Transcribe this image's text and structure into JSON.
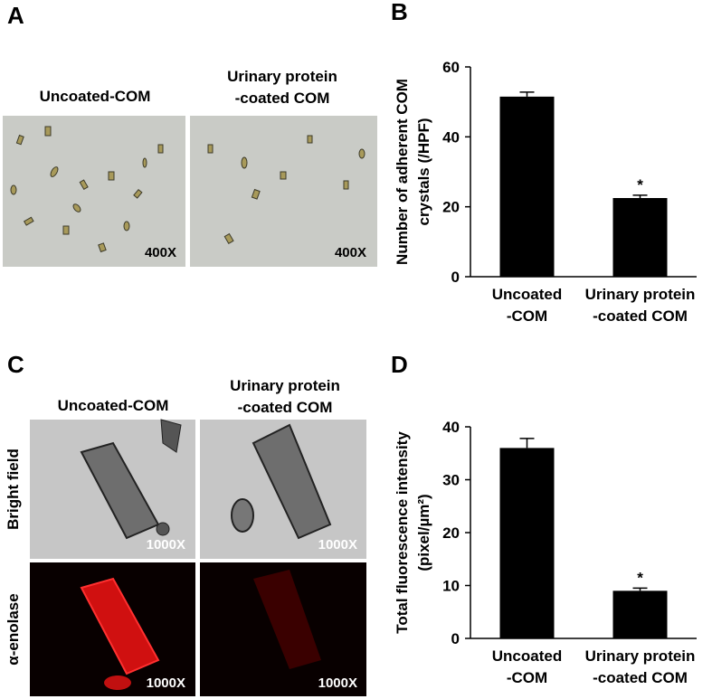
{
  "panel_letters": [
    "A",
    "B",
    "C",
    "D"
  ],
  "panel_a": {
    "column_labels": [
      "Uncoated-COM",
      "Urinary protein\n-coated COM"
    ],
    "magnifications": [
      "400X",
      "400X"
    ]
  },
  "panel_c": {
    "column_labels": [
      "Uncoated-COM",
      "Urinary protein\n-coated COM"
    ],
    "row_labels": [
      "Bright field",
      "α-enolase"
    ],
    "magnifications": [
      "1000X",
      "1000X",
      "1000X",
      "1000X"
    ]
  },
  "chart_data": [
    {
      "type": "bar",
      "y_label": "Number of adherent COM\ncrystals (/HPF)",
      "categories": [
        "Uncoated\n-COM",
        "Urinary protein\n-coated COM"
      ],
      "values": [
        51.5,
        22.5
      ],
      "errors": [
        1.3,
        0.8
      ],
      "significance": [
        null,
        "*"
      ],
      "color": "#000000",
      "ylim": [
        0,
        60
      ],
      "yticks": [
        0,
        20,
        40,
        60
      ]
    },
    {
      "type": "bar",
      "y_label": "Total fluorescence intensity\n(pixel/µm²)",
      "categories": [
        "Uncoated\n-COM",
        "Urinary protein\n-coated COM"
      ],
      "values": [
        36,
        9
      ],
      "errors": [
        1.8,
        0.5
      ],
      "significance": [
        null,
        "*"
      ],
      "color": "#000000",
      "ylim": [
        0,
        40
      ],
      "yticks": [
        0,
        10,
        20,
        30,
        40
      ]
    }
  ]
}
